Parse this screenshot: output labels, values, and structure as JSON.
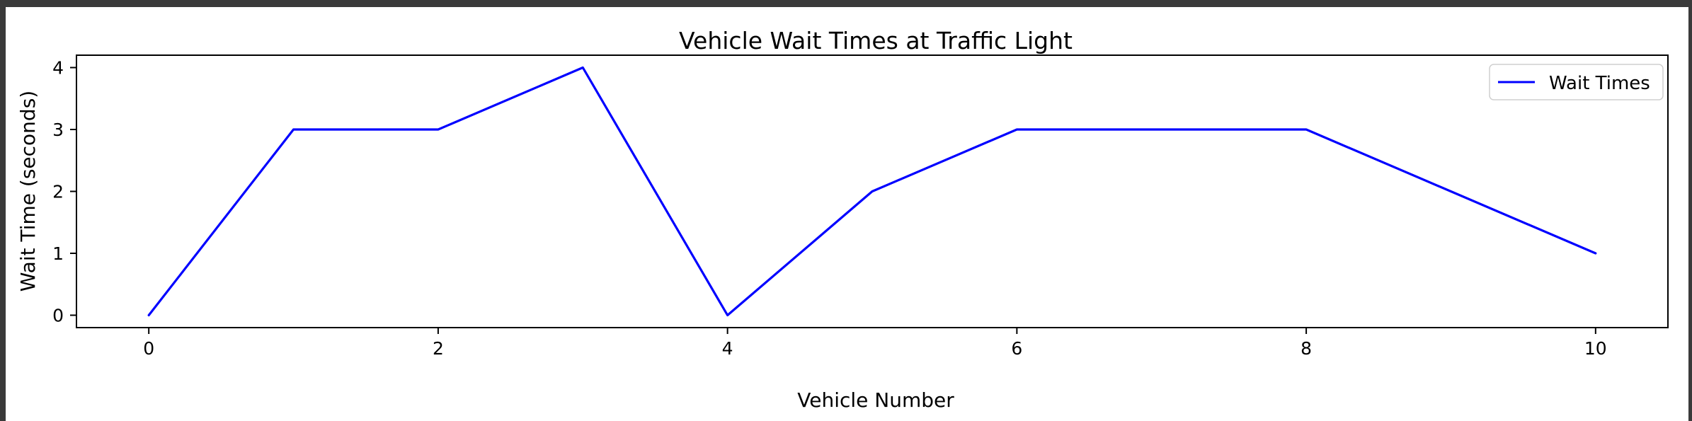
{
  "chart_data": {
    "type": "line",
    "title": "Vehicle Wait Times at Traffic Light",
    "xlabel": "Vehicle Number",
    "ylabel": "Wait Time (seconds)",
    "x": [
      0,
      1,
      2,
      3,
      4,
      5,
      6,
      7,
      8,
      9,
      10
    ],
    "series": [
      {
        "name": "Wait Times",
        "values": [
          0,
          3,
          3,
          4,
          0,
          2,
          3,
          3,
          3,
          2,
          1
        ],
        "color": "#0000ff"
      }
    ],
    "xlim": [
      -0.5,
      10.5
    ],
    "ylim": [
      -0.2,
      4.2
    ],
    "xticks": [
      0,
      2,
      4,
      6,
      8,
      10
    ],
    "yticks": [
      0,
      1,
      2,
      3,
      4
    ],
    "grid": false,
    "legend_position": "top-right"
  }
}
